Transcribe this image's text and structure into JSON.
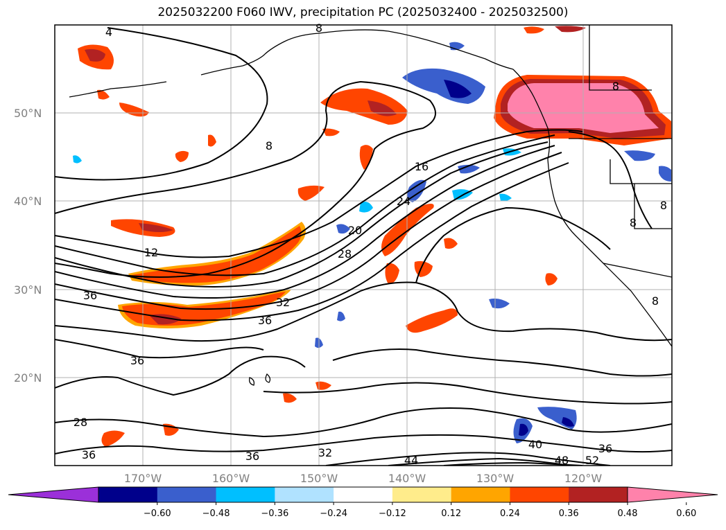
{
  "title": "2025032200 F060 IWV, precipitation PC (2025032400 - 2025032500)",
  "map": {
    "lat_range": [
      10,
      60
    ],
    "lon_range": [
      -180,
      -110
    ],
    "latitude_labels": [
      {
        "lat": 50,
        "label": "50°N"
      },
      {
        "lat": 40,
        "label": "40°N"
      },
      {
        "lat": 30,
        "label": "30°N"
      },
      {
        "lat": 20,
        "label": "20°N"
      }
    ],
    "longitude_labels": [
      {
        "lon": -170,
        "label": "170°W"
      },
      {
        "lon": -160,
        "label": "160°W"
      },
      {
        "lon": -150,
        "label": "150°W"
      },
      {
        "lon": -140,
        "label": "140°W"
      },
      {
        "lon": -130,
        "label": "130°W"
      },
      {
        "lon": -120,
        "label": "120°W"
      }
    ],
    "grid": true,
    "contour_labels": [
      "4",
      "8",
      "8",
      "12",
      "16",
      "20",
      "24",
      "28",
      "32",
      "36",
      "36",
      "36",
      "36",
      "36",
      "28",
      "32",
      "40",
      "44",
      "48",
      "52",
      "36",
      "8",
      "8",
      "8",
      "8"
    ],
    "colors": {
      "land_outline": "#000000",
      "grid": "#b0b0b0"
    }
  },
  "colorbar": {
    "ticks": [
      "−0.60",
      "−0.48",
      "−0.36",
      "−0.24",
      "−0.12",
      "0.12",
      "0.24",
      "0.36",
      "0.48",
      "0.60"
    ],
    "bins": [
      {
        "color": "#9b30d9"
      },
      {
        "color": "#00008b"
      },
      {
        "color": "#3a5fcd"
      },
      {
        "color": "#00bfff"
      },
      {
        "color": "#b0e2ff"
      },
      {
        "color": "#ffffff"
      },
      {
        "color": "#ffec8b"
      },
      {
        "color": "#ffa500"
      },
      {
        "color": "#ff4500"
      },
      {
        "color": "#b22222"
      },
      {
        "color": "#ff82ab"
      }
    ]
  }
}
